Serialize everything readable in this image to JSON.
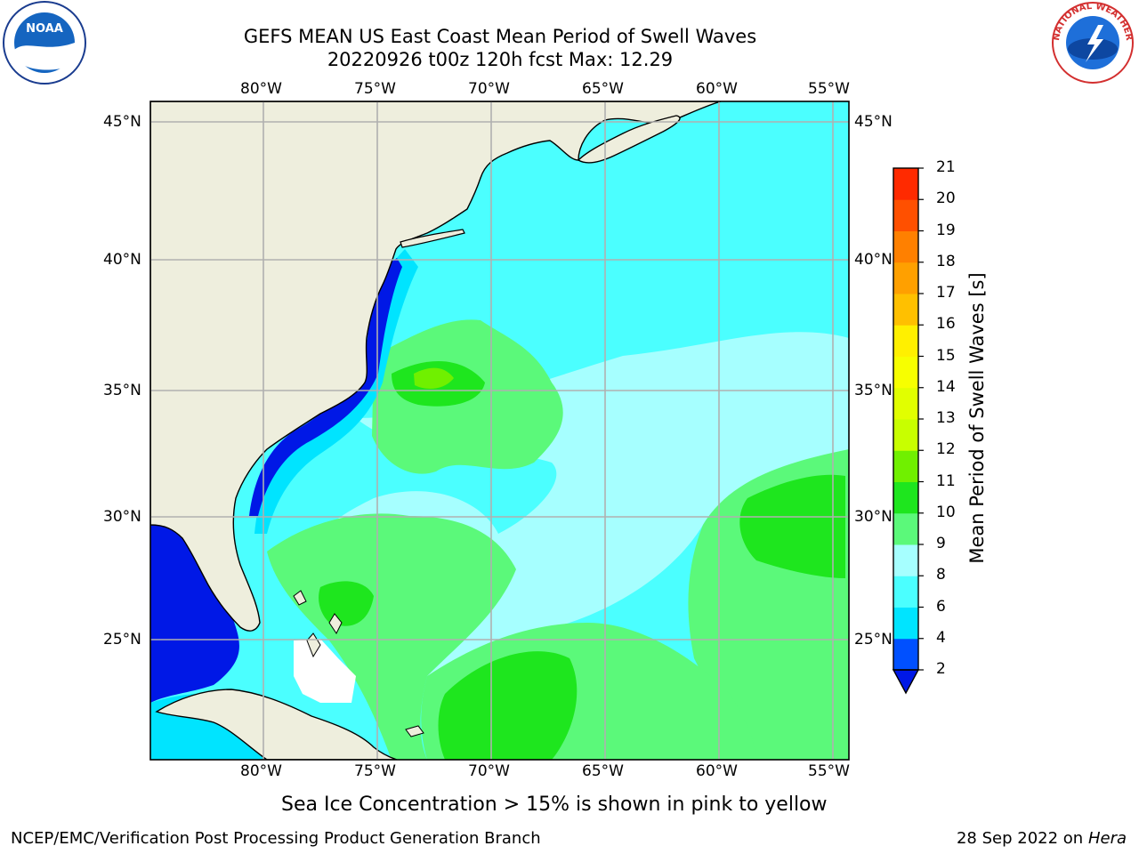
{
  "header": {
    "title_line1": "GEFS MEAN US East Coast Mean Period of Swell Waves",
    "title_line2": "20220926 t00z 120h fcst   Max: 12.29"
  },
  "logos": {
    "noaa": "NOAA",
    "nws_ring": "NATIONAL WEATHER SERVICE"
  },
  "axes": {
    "lon_labels": [
      "80°W",
      "75°W",
      "70°W",
      "65°W",
      "60°W",
      "55°W"
    ],
    "lat_labels": [
      "45°N",
      "40°N",
      "35°N",
      "30°N",
      "25°N"
    ]
  },
  "colorbar": {
    "title": "Mean Period of Swell Waves [s]",
    "levels": [
      "2",
      "4",
      "6",
      "8",
      "9",
      "10",
      "11",
      "12",
      "13",
      "14",
      "15",
      "16",
      "17",
      "18",
      "19",
      "20",
      "21"
    ],
    "colors": [
      "#0050ff",
      "#00e4ff",
      "#4bffff",
      "#a6ffff",
      "#5bf97a",
      "#1ee61e",
      "#70f000",
      "#c8ff00",
      "#e1ff00",
      "#f7ff00",
      "#fff000",
      "#ffc000",
      "#ffa000",
      "#ff8000",
      "#ff5000",
      "#ff2a00"
    ],
    "extend_color": "#0018e6"
  },
  "footer": {
    "caption": "Sea Ice Concentration > 15% is shown in pink to yellow",
    "left": "NCEP/EMC/Verification Post Processing Product Generation Branch",
    "right_date": "28 Sep 2022 on",
    "right_machine": "Hera"
  },
  "colors": {
    "land": "#eeeedd",
    "grid": "#b0b0b0"
  }
}
